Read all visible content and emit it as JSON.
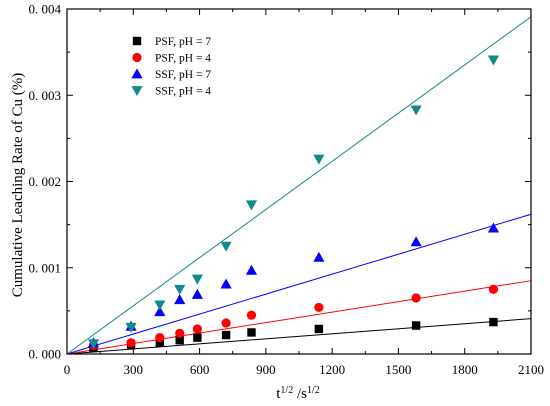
{
  "chart_data": {
    "type": "scatter",
    "xlabel": "t",
    "xlabel_sup1": "1/2",
    "xlabel_sep": " /s",
    "xlabel_sup2": "1/2",
    "ylabel": "Cumulative Leaching Rate of Cu (%)",
    "xlim": [
      0,
      2100
    ],
    "ylim": [
      0,
      0.004
    ],
    "x_ticks": [
      0,
      300,
      600,
      900,
      1200,
      1500,
      1800,
      2100
    ],
    "x_tick_labels": [
      "0",
      "300",
      "600",
      "900",
      "1200",
      "1500",
      "1800",
      "2100"
    ],
    "y_ticks": [
      0,
      0.001,
      0.002,
      0.003,
      0.004
    ],
    "y_tick_labels": [
      "0. 000",
      "0. 001",
      "0. 002",
      "0. 003",
      "0. 004"
    ],
    "grid": false,
    "legend_position": "top-left",
    "series": [
      {
        "name": "PSF, pH = 7",
        "marker": "square",
        "color": "#000000",
        "x": [
          120,
          290,
          420,
          510,
          590,
          720,
          835,
          1140,
          1580,
          1930
        ],
        "y": [
          7e-05,
          0.0001,
          0.00013,
          0.00016,
          0.00019,
          0.00022,
          0.00025,
          0.00029,
          0.00033,
          0.00037
        ],
        "fit": {
          "x": [
            0,
            2100
          ],
          "y": [
            0,
            0.00041
          ]
        }
      },
      {
        "name": "PSF, pH = 4",
        "marker": "circle",
        "color": "#ff0000",
        "x": [
          120,
          290,
          420,
          510,
          590,
          720,
          835,
          1140,
          1580,
          1930
        ],
        "y": [
          0.0001,
          0.00013,
          0.00019,
          0.00024,
          0.00029,
          0.00036,
          0.00045,
          0.00054,
          0.00065,
          0.00075
        ],
        "fit": {
          "x": [
            0,
            2100
          ],
          "y": [
            0,
            0.00085
          ]
        }
      },
      {
        "name": "SSF, pH = 7",
        "marker": "triangle-up",
        "color": "#0000ff",
        "x": [
          120,
          290,
          420,
          510,
          590,
          720,
          835,
          1140,
          1580,
          1930
        ],
        "y": [
          0.00013,
          0.00032,
          0.00049,
          0.00063,
          0.00069,
          0.00081,
          0.00097,
          0.00112,
          0.0013,
          0.00146
        ],
        "fit": {
          "x": [
            0,
            2100
          ],
          "y": [
            0,
            0.00162
          ]
        }
      },
      {
        "name": "SSF, pH = 4",
        "marker": "triangle-down",
        "color": "#138a8a",
        "x": [
          120,
          290,
          420,
          510,
          590,
          720,
          835,
          1140,
          1580,
          1930
        ],
        "y": [
          0.00012,
          0.00031,
          0.00057,
          0.00075,
          0.00087,
          0.00125,
          0.00173,
          0.00226,
          0.00283,
          0.00341
        ],
        "fit": {
          "x": [
            0,
            2100
          ],
          "y": [
            0,
            0.00391
          ]
        }
      }
    ]
  }
}
